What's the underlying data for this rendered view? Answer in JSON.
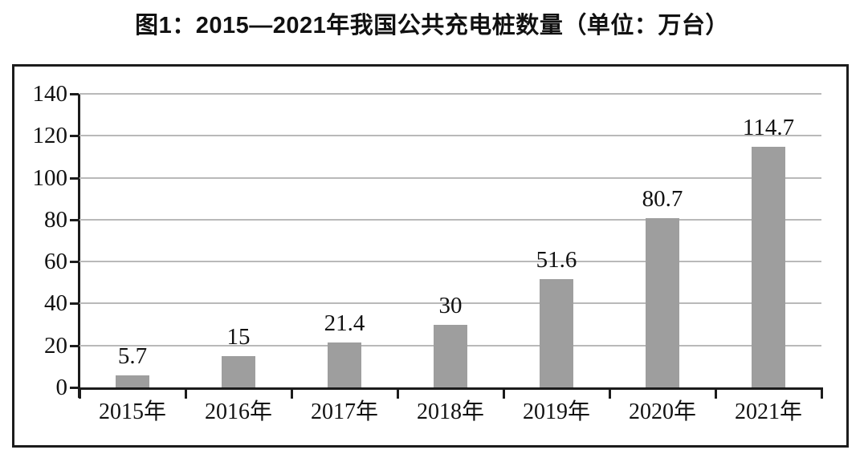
{
  "title": "图1：2015—2021年我国公共充电桩数量（单位：万台）",
  "chart_data": {
    "type": "bar",
    "title": "图1：2015—2021年我国公共充电桩数量（单位：万台）",
    "unit": "万台",
    "categories": [
      "2015年",
      "2016年",
      "2017年",
      "2018年",
      "2019年",
      "2020年",
      "2021年"
    ],
    "values": [
      5.7,
      15,
      21.4,
      30,
      51.6,
      80.7,
      114.7
    ],
    "value_labels": [
      "5.7",
      "15",
      "21.4",
      "30",
      "51.6",
      "80.7",
      "114.7"
    ],
    "xlabel": "",
    "ylabel": "",
    "yticks": [
      0,
      20,
      40,
      60,
      80,
      100,
      120,
      140
    ],
    "ylim": [
      0,
      140
    ],
    "grid": true,
    "legend_position": "none",
    "colors": {
      "bar": "#9e9e9e",
      "gridline": "#b9b9b9",
      "axis": "#1c1c1c",
      "frame_border": "#1c1c1c",
      "text": "#111111",
      "background": "#ffffff"
    }
  }
}
